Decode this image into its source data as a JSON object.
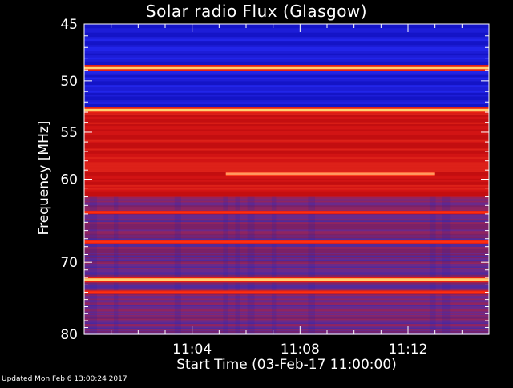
{
  "footer": {
    "updated": "Updated Mon Feb  6 13:00:24 2017"
  },
  "chart_data": {
    "type": "heatmap",
    "title": "Solar radio Flux (Glasgow)",
    "xlabel": "Start Time (03-Feb-17 11:00:00)",
    "ylabel": "Frequency [MHz]",
    "x_unit": "minutes after 11:00:00",
    "xlim": [
      0,
      15
    ],
    "ylim": [
      45,
      80
    ],
    "y_scale": "log",
    "y_inverted": true,
    "x_ticks": [
      {
        "value": 4,
        "label": "11:04"
      },
      {
        "value": 8,
        "label": "11:08"
      },
      {
        "value": 12,
        "label": "11:12"
      }
    ],
    "y_ticks": [
      {
        "value": 45,
        "label": "45"
      },
      {
        "value": 50,
        "label": "50"
      },
      {
        "value": 55,
        "label": "55"
      },
      {
        "value": 60,
        "label": "60"
      },
      {
        "value": 70,
        "label": "70"
      },
      {
        "value": 80,
        "label": "80"
      }
    ],
    "y_minor_ticks": [
      46,
      47,
      48,
      49,
      51,
      52,
      53,
      54,
      56,
      57,
      58,
      59,
      61,
      62,
      63,
      64,
      65,
      66,
      67,
      68,
      69,
      71,
      72,
      73,
      74,
      75,
      76,
      77,
      78,
      79
    ],
    "x_minor_ticks": [
      1,
      2,
      3,
      5,
      6,
      7,
      9,
      10,
      11,
      13,
      14
    ],
    "colors": {
      "background": "#000000",
      "low": "#1a1ae0",
      "mid": "#5a2a9a",
      "high": "#d01010",
      "peak": "#ffd070"
    },
    "regions": [
      {
        "f_from": 45,
        "f_to": 52.7,
        "level": "low"
      },
      {
        "f_from": 52.7,
        "f_to": 62,
        "level": "high"
      },
      {
        "f_from": 62,
        "f_to": 80,
        "level": "mid"
      }
    ],
    "persistent_bands": [
      {
        "freq": 48.8,
        "intensity": "peak"
      },
      {
        "freq": 52.8,
        "intensity": "peak"
      },
      {
        "freq": 72.3,
        "intensity": "peak"
      },
      {
        "freq": 74.0,
        "intensity": "high"
      },
      {
        "freq": 63.8,
        "intensity": "high"
      },
      {
        "freq": 67.4,
        "intensity": "high"
      }
    ],
    "features": [
      {
        "type": "horizontal",
        "freq": 59.4,
        "t_start": 5.25,
        "t_end": 13.0,
        "intensity": "peak"
      }
    ]
  }
}
